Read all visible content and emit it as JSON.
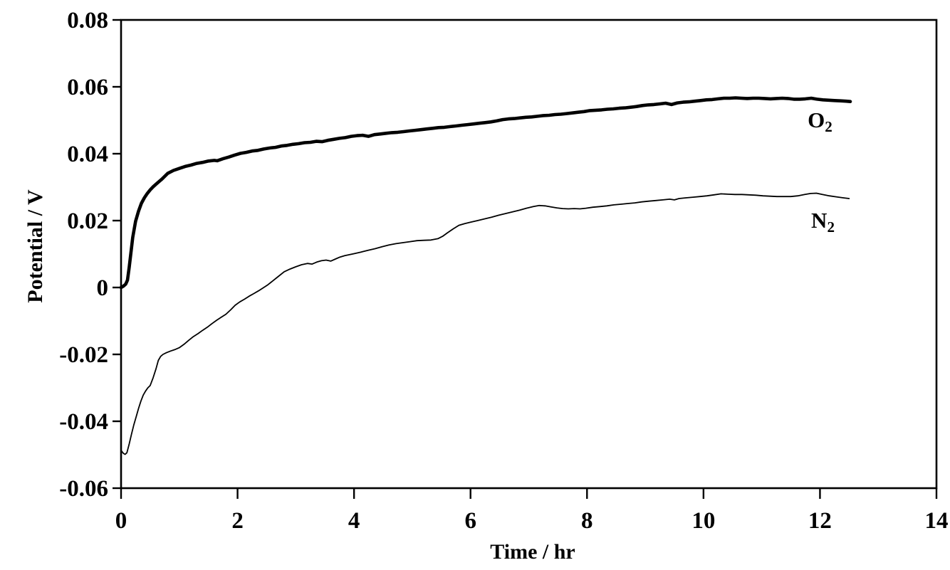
{
  "figure": {
    "background": "#ffffff",
    "ink_color": "#000000"
  },
  "chart_data": {
    "type": "line",
    "title": "",
    "xlabel": "Time / hr",
    "ylabel": "Potential / V",
    "xlim": [
      0,
      14
    ],
    "ylim": [
      -0.06,
      0.08
    ],
    "grid": false,
    "legend": "inline annotations at right end of each curve",
    "x_ticks": [
      {
        "value": 0,
        "label": "0"
      },
      {
        "value": 2,
        "label": "2"
      },
      {
        "value": 4,
        "label": "4"
      },
      {
        "value": 6,
        "label": "6"
      },
      {
        "value": 8,
        "label": "8"
      },
      {
        "value": 10,
        "label": "10"
      },
      {
        "value": 12,
        "label": "12"
      },
      {
        "value": 14,
        "label": "14"
      }
    ],
    "y_ticks": [
      {
        "value": 0.08,
        "label": "0.08"
      },
      {
        "value": 0.06,
        "label": "0.06"
      },
      {
        "value": 0.04,
        "label": "0.04"
      },
      {
        "value": 0.02,
        "label": "0.02"
      },
      {
        "value": 0,
        "label": "0"
      },
      {
        "value": -0.02,
        "label": "-0.02"
      },
      {
        "value": -0.04,
        "label": "-0.04"
      },
      {
        "value": -0.06,
        "label": "-0.06"
      }
    ],
    "series": [
      {
        "name": "O2",
        "label_main": "O",
        "label_sub": "2",
        "color": "#000000",
        "stroke_width": 4.6,
        "label_pos": [
          12.0,
          0.0495
        ],
        "points": [
          [
            0,
            0
          ],
          [
            0.04,
            0.0004
          ],
          [
            0.08,
            0.001
          ],
          [
            0.11,
            0.0022
          ],
          [
            0.14,
            0.006
          ],
          [
            0.17,
            0.0105
          ],
          [
            0.2,
            0.015
          ],
          [
            0.25,
            0.0198
          ],
          [
            0.3,
            0.0228
          ],
          [
            0.35,
            0.0252
          ],
          [
            0.4,
            0.0268
          ],
          [
            0.45,
            0.0281
          ],
          [
            0.5,
            0.0292
          ],
          [
            0.55,
            0.0301
          ],
          [
            0.6,
            0.0309
          ],
          [
            0.7,
            0.0324
          ],
          [
            0.8,
            0.0341
          ],
          [
            0.9,
            0.035
          ],
          [
            1,
            0.0356
          ],
          [
            1.1,
            0.0362
          ],
          [
            1.2,
            0.0366
          ],
          [
            1.3,
            0.0371
          ],
          [
            1.4,
            0.0374
          ],
          [
            1.5,
            0.0378
          ],
          [
            1.6,
            0.038
          ],
          [
            1.65,
            0.0379
          ],
          [
            1.75,
            0.0385
          ],
          [
            1.85,
            0.039
          ],
          [
            1.95,
            0.0396
          ],
          [
            2.05,
            0.0401
          ],
          [
            2.15,
            0.0404
          ],
          [
            2.25,
            0.0408
          ],
          [
            2.35,
            0.041
          ],
          [
            2.45,
            0.0414
          ],
          [
            2.55,
            0.0417
          ],
          [
            2.65,
            0.0419
          ],
          [
            2.75,
            0.0423
          ],
          [
            2.85,
            0.0425
          ],
          [
            2.95,
            0.0428
          ],
          [
            3.05,
            0.043
          ],
          [
            3.15,
            0.0433
          ],
          [
            3.25,
            0.0434
          ],
          [
            3.35,
            0.0437
          ],
          [
            3.45,
            0.0436
          ],
          [
            3.55,
            0.044
          ],
          [
            3.65,
            0.0443
          ],
          [
            3.75,
            0.0446
          ],
          [
            3.85,
            0.0448
          ],
          [
            3.95,
            0.0452
          ],
          [
            4.05,
            0.0454
          ],
          [
            4.15,
            0.0455
          ],
          [
            4.25,
            0.0452
          ],
          [
            4.35,
            0.0457
          ],
          [
            4.45,
            0.0459
          ],
          [
            4.55,
            0.0461
          ],
          [
            4.65,
            0.0463
          ],
          [
            4.75,
            0.0464
          ],
          [
            4.85,
            0.0466
          ],
          [
            4.95,
            0.0468
          ],
          [
            5.05,
            0.047
          ],
          [
            5.15,
            0.0472
          ],
          [
            5.25,
            0.0474
          ],
          [
            5.35,
            0.0476
          ],
          [
            5.45,
            0.0478
          ],
          [
            5.55,
            0.0479
          ],
          [
            5.65,
            0.0481
          ],
          [
            5.75,
            0.0483
          ],
          [
            5.85,
            0.0485
          ],
          [
            5.95,
            0.0487
          ],
          [
            6.05,
            0.0489
          ],
          [
            6.15,
            0.0491
          ],
          [
            6.25,
            0.0493
          ],
          [
            6.35,
            0.0495
          ],
          [
            6.45,
            0.0498
          ],
          [
            6.55,
            0.0502
          ],
          [
            6.65,
            0.0504
          ],
          [
            6.75,
            0.0505
          ],
          [
            6.85,
            0.0507
          ],
          [
            6.95,
            0.0509
          ],
          [
            7.05,
            0.051
          ],
          [
            7.15,
            0.0512
          ],
          [
            7.25,
            0.0514
          ],
          [
            7.35,
            0.0515
          ],
          [
            7.45,
            0.0517
          ],
          [
            7.55,
            0.0518
          ],
          [
            7.65,
            0.052
          ],
          [
            7.75,
            0.0522
          ],
          [
            7.85,
            0.0524
          ],
          [
            7.95,
            0.0526
          ],
          [
            8.05,
            0.0529
          ],
          [
            8.15,
            0.053
          ],
          [
            8.25,
            0.0531
          ],
          [
            8.35,
            0.0533
          ],
          [
            8.45,
            0.0534
          ],
          [
            8.55,
            0.0536
          ],
          [
            8.65,
            0.0537
          ],
          [
            8.75,
            0.0539
          ],
          [
            8.85,
            0.0541
          ],
          [
            8.95,
            0.0544
          ],
          [
            9.05,
            0.0546
          ],
          [
            9.15,
            0.0547
          ],
          [
            9.25,
            0.0549
          ],
          [
            9.35,
            0.0551
          ],
          [
            9.45,
            0.0547
          ],
          [
            9.55,
            0.0552
          ],
          [
            9.65,
            0.0554
          ],
          [
            9.75,
            0.0555
          ],
          [
            9.85,
            0.0557
          ],
          [
            9.95,
            0.0559
          ],
          [
            10.05,
            0.0561
          ],
          [
            10.15,
            0.0562
          ],
          [
            10.25,
            0.0564
          ],
          [
            10.35,
            0.0566
          ],
          [
            10.45,
            0.0566
          ],
          [
            10.55,
            0.0567
          ],
          [
            10.65,
            0.0566
          ],
          [
            10.75,
            0.0565
          ],
          [
            10.85,
            0.0566
          ],
          [
            10.95,
            0.0566
          ],
          [
            11.05,
            0.0565
          ],
          [
            11.15,
            0.0564
          ],
          [
            11.25,
            0.0565
          ],
          [
            11.35,
            0.0566
          ],
          [
            11.45,
            0.0565
          ],
          [
            11.55,
            0.0563
          ],
          [
            11.65,
            0.0563
          ],
          [
            11.75,
            0.0564
          ],
          [
            11.85,
            0.0566
          ],
          [
            11.95,
            0.0563
          ],
          [
            12.05,
            0.0561
          ],
          [
            12.15,
            0.056
          ],
          [
            12.25,
            0.0559
          ],
          [
            12.35,
            0.0558
          ],
          [
            12.45,
            0.0557
          ],
          [
            12.52,
            0.0556
          ]
        ]
      },
      {
        "name": "N2",
        "label_main": "N",
        "label_sub": "2",
        "color": "#000000",
        "stroke_width": 1.8,
        "label_pos": [
          12.05,
          0.0195
        ],
        "points": [
          [
            0,
            -0.0487
          ],
          [
            0.04,
            -0.0496
          ],
          [
            0.07,
            -0.0499
          ],
          [
            0.1,
            -0.0494
          ],
          [
            0.14,
            -0.0468
          ],
          [
            0.18,
            -0.0438
          ],
          [
            0.22,
            -0.041
          ],
          [
            0.26,
            -0.0386
          ],
          [
            0.3,
            -0.0362
          ],
          [
            0.34,
            -0.034
          ],
          [
            0.38,
            -0.0322
          ],
          [
            0.42,
            -0.031
          ],
          [
            0.46,
            -0.03
          ],
          [
            0.5,
            -0.0293
          ],
          [
            0.55,
            -0.027
          ],
          [
            0.6,
            -0.0243
          ],
          [
            0.64,
            -0.0218
          ],
          [
            0.68,
            -0.0206
          ],
          [
            0.72,
            -0.02
          ],
          [
            0.78,
            -0.0195
          ],
          [
            0.85,
            -0.019
          ],
          [
            0.92,
            -0.0186
          ],
          [
            1,
            -0.018
          ],
          [
            1.08,
            -0.017
          ],
          [
            1.16,
            -0.0158
          ],
          [
            1.24,
            -0.0147
          ],
          [
            1.32,
            -0.0138
          ],
          [
            1.4,
            -0.0128
          ],
          [
            1.48,
            -0.0119
          ],
          [
            1.56,
            -0.0108
          ],
          [
            1.64,
            -0.0098
          ],
          [
            1.72,
            -0.0089
          ],
          [
            1.8,
            -0.008
          ],
          [
            1.88,
            -0.0067
          ],
          [
            1.96,
            -0.0053
          ],
          [
            2.04,
            -0.0043
          ],
          [
            2.12,
            -0.0035
          ],
          [
            2.2,
            -0.0026
          ],
          [
            2.28,
            -0.0018
          ],
          [
            2.36,
            -0.001
          ],
          [
            2.44,
            -0.0001
          ],
          [
            2.52,
            0.0008
          ],
          [
            2.6,
            0.0019
          ],
          [
            2.7,
            0.0033
          ],
          [
            2.8,
            0.0047
          ],
          [
            2.9,
            0.0055
          ],
          [
            3,
            0.0062
          ],
          [
            3.1,
            0.0068
          ],
          [
            3.2,
            0.0072
          ],
          [
            3.28,
            0.007
          ],
          [
            3.36,
            0.0076
          ],
          [
            3.44,
            0.008
          ],
          [
            3.52,
            0.0082
          ],
          [
            3.6,
            0.0079
          ],
          [
            3.68,
            0.0085
          ],
          [
            3.76,
            0.0091
          ],
          [
            3.84,
            0.0095
          ],
          [
            3.92,
            0.0098
          ],
          [
            4,
            0.0101
          ],
          [
            4.12,
            0.0106
          ],
          [
            4.24,
            0.0111
          ],
          [
            4.36,
            0.0116
          ],
          [
            4.48,
            0.0122
          ],
          [
            4.6,
            0.0127
          ],
          [
            4.72,
            0.0131
          ],
          [
            4.84,
            0.0134
          ],
          [
            4.96,
            0.0137
          ],
          [
            5.08,
            0.014
          ],
          [
            5.2,
            0.0141
          ],
          [
            5.32,
            0.0142
          ],
          [
            5.44,
            0.0146
          ],
          [
            5.52,
            0.0153
          ],
          [
            5.6,
            0.0163
          ],
          [
            5.7,
            0.0175
          ],
          [
            5.8,
            0.0186
          ],
          [
            5.9,
            0.0191
          ],
          [
            6,
            0.0195
          ],
          [
            6.12,
            0.02
          ],
          [
            6.24,
            0.0205
          ],
          [
            6.36,
            0.021
          ],
          [
            6.48,
            0.0216
          ],
          [
            6.6,
            0.0221
          ],
          [
            6.72,
            0.0226
          ],
          [
            6.84,
            0.0231
          ],
          [
            6.96,
            0.0237
          ],
          [
            7.08,
            0.0242
          ],
          [
            7.18,
            0.0245
          ],
          [
            7.28,
            0.0244
          ],
          [
            7.38,
            0.0241
          ],
          [
            7.48,
            0.0238
          ],
          [
            7.58,
            0.0236
          ],
          [
            7.68,
            0.0235
          ],
          [
            7.78,
            0.0236
          ],
          [
            7.88,
            0.0235
          ],
          [
            7.98,
            0.0237
          ],
          [
            8.1,
            0.024
          ],
          [
            8.22,
            0.0242
          ],
          [
            8.34,
            0.0244
          ],
          [
            8.46,
            0.0247
          ],
          [
            8.58,
            0.0249
          ],
          [
            8.7,
            0.0251
          ],
          [
            8.82,
            0.0253
          ],
          [
            8.94,
            0.0256
          ],
          [
            9.06,
            0.0258
          ],
          [
            9.18,
            0.026
          ],
          [
            9.3,
            0.0262
          ],
          [
            9.42,
            0.0264
          ],
          [
            9.5,
            0.0262
          ],
          [
            9.58,
            0.0266
          ],
          [
            9.7,
            0.0268
          ],
          [
            9.82,
            0.027
          ],
          [
            9.94,
            0.0272
          ],
          [
            10.06,
            0.0274
          ],
          [
            10.18,
            0.0277
          ],
          [
            10.3,
            0.028
          ],
          [
            10.42,
            0.0279
          ],
          [
            10.54,
            0.0278
          ],
          [
            10.66,
            0.0278
          ],
          [
            10.78,
            0.0277
          ],
          [
            10.9,
            0.0276
          ],
          [
            11.02,
            0.0274
          ],
          [
            11.14,
            0.0273
          ],
          [
            11.26,
            0.0272
          ],
          [
            11.38,
            0.0272
          ],
          [
            11.5,
            0.0272
          ],
          [
            11.62,
            0.0274
          ],
          [
            11.74,
            0.0278
          ],
          [
            11.84,
            0.0281
          ],
          [
            11.94,
            0.0282
          ],
          [
            12.04,
            0.0278
          ],
          [
            12.16,
            0.0274
          ],
          [
            12.28,
            0.0271
          ],
          [
            12.4,
            0.0268
          ],
          [
            12.5,
            0.0266
          ]
        ]
      }
    ]
  }
}
